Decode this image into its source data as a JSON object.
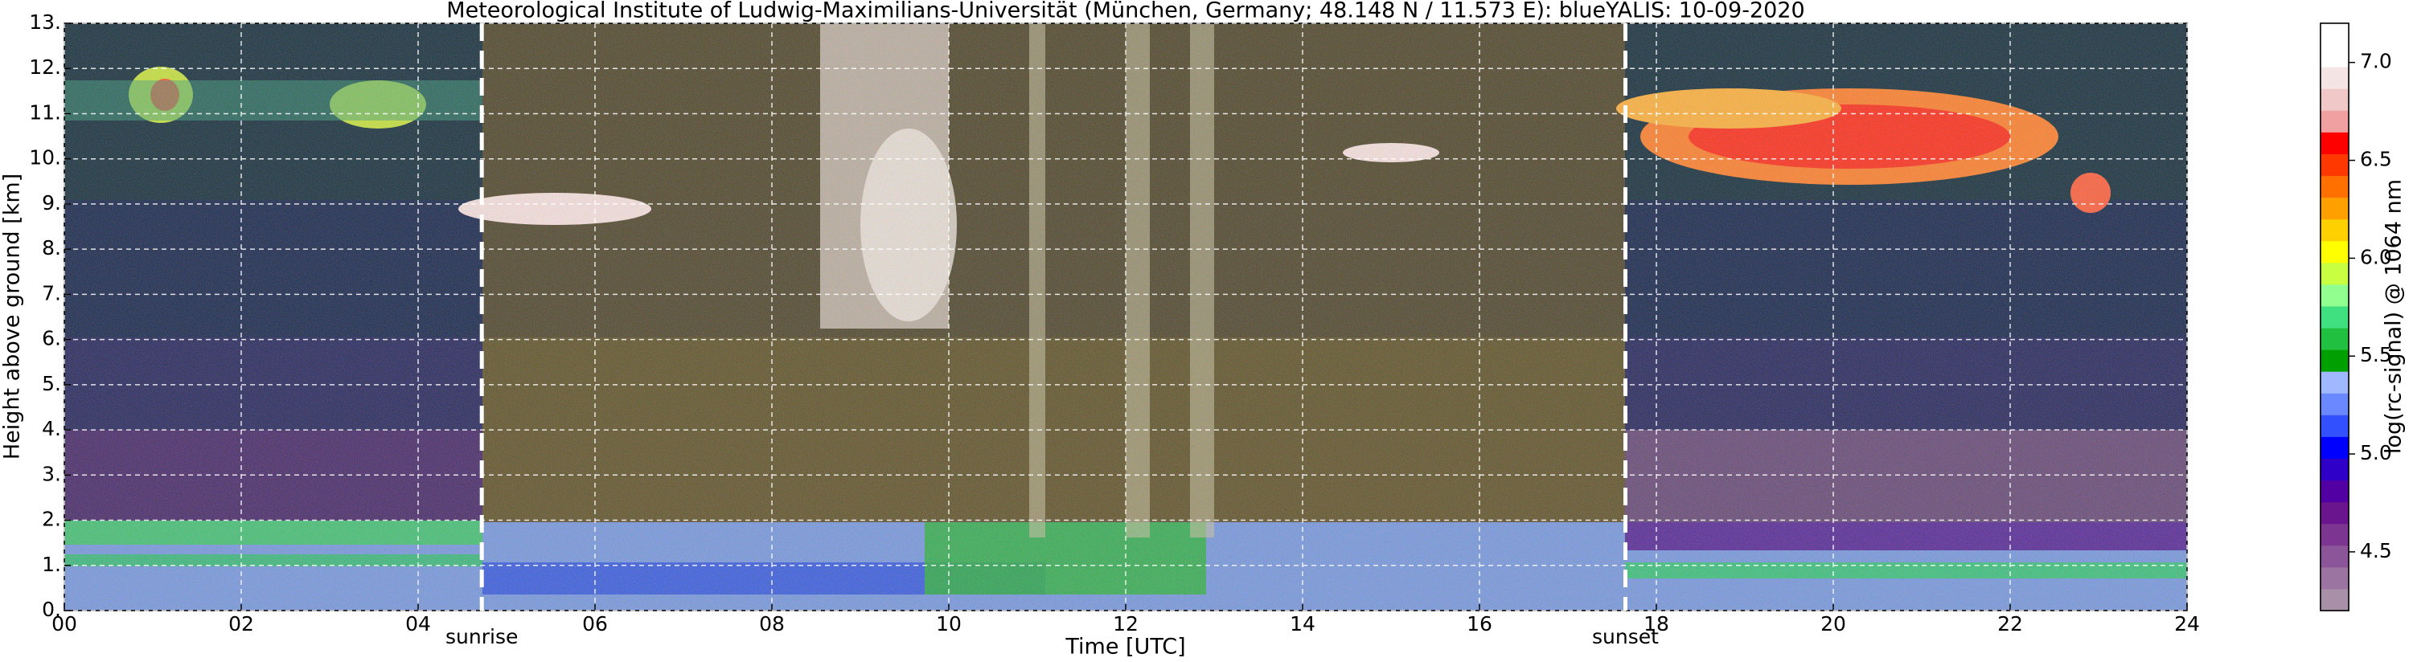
{
  "chart_data": {
    "type": "heatmap",
    "title": "Meteorological Institute of Ludwig-Maximilians-Universität (München, Germany; 48.148 N / 11.573 E):    blueYALIS: 10-09-2020",
    "x_label": "Time [UTC]",
    "y_label": "Height above ground [km]",
    "colorbar_label": "log(rc-signal) @ 1064 nm",
    "xlim": [
      0,
      24
    ],
    "xticks": [
      {
        "value": 0,
        "label": "00"
      },
      {
        "value": 2,
        "label": "02"
      },
      {
        "value": 4,
        "label": "04"
      },
      {
        "value": 6,
        "label": "06"
      },
      {
        "value": 8,
        "label": "08"
      },
      10,
      12,
      14,
      16,
      18,
      20,
      22,
      24
    ],
    "ylim": [
      0,
      13
    ],
    "yticks": [
      {
        "value": 0,
        "label": "0."
      },
      {
        "value": 1,
        "label": "1."
      },
      {
        "value": 2,
        "label": "2."
      },
      {
        "value": 3,
        "label": "3."
      },
      {
        "value": 4,
        "label": "4."
      },
      {
        "value": 5,
        "label": "5."
      },
      {
        "value": 6,
        "label": "6."
      },
      {
        "value": 7,
        "label": "7."
      },
      {
        "value": 8,
        "label": "8."
      },
      {
        "value": 9,
        "label": "9."
      },
      {
        "value": 10,
        "label": "10."
      },
      {
        "value": 11,
        "label": "11."
      },
      {
        "value": 12,
        "label": "12."
      },
      {
        "value": 13,
        "label": "13."
      }
    ],
    "clim": [
      4.2,
      7.2
    ],
    "cticks": [
      4.5,
      {
        "value": 5,
        "label": "5.0"
      },
      5.5,
      {
        "value": 6,
        "label": "6.0"
      },
      6.5,
      {
        "value": 7,
        "label": "7.0"
      }
    ],
    "colormap": [
      "#a890a8",
      "#9c74a2",
      "#8c559a",
      "#7c3590",
      "#6a148e",
      "#5200a4",
      "#2e00c8",
      "#0000ff",
      "#3350ff",
      "#6a88ff",
      "#a0b8ff",
      "#00a000",
      "#22c040",
      "#40e080",
      "#90ff90",
      "#c8ff40",
      "#ffff00",
      "#ffd000",
      "#ffa000",
      "#ff7000",
      "#ff3800",
      "#ff0000",
      "#f0a0a0",
      "#f0c8c8",
      "#f4e4e4",
      "#ffffff",
      "#ffffff"
    ],
    "grid": true,
    "annotations": [
      {
        "text": "sunrise",
        "x": 4.72
      },
      {
        "text": "sunset",
        "x": 17.65
      }
    ]
  }
}
